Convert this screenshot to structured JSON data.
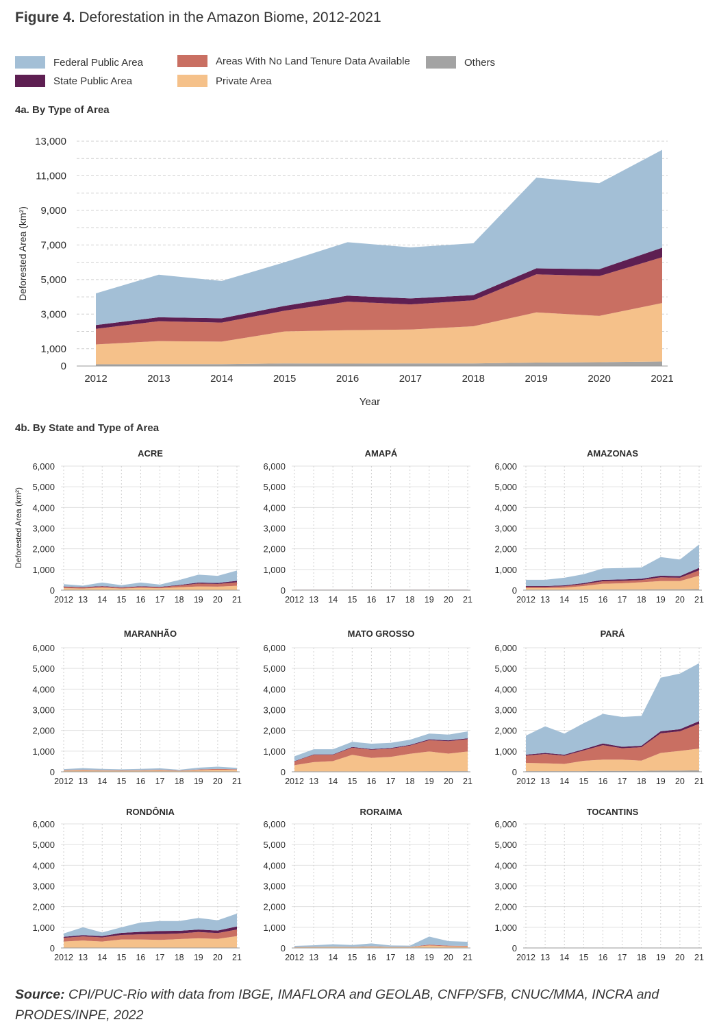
{
  "figure": {
    "label": "Figure 4.",
    "title": "Deforestation in the Amazon Biome, 2012-2021"
  },
  "legend": [
    {
      "key": "federal",
      "label": "Federal Public Area",
      "color": "#a3bfd6"
    },
    {
      "key": "state",
      "label": "State Public Area",
      "color": "#5e1f52"
    },
    {
      "key": "notenure",
      "label": "Areas With No Land Tenure Data Available",
      "color": "#c96f62"
    },
    {
      "key": "private",
      "label": "Private Area",
      "color": "#f5c18a"
    },
    {
      "key": "others",
      "label": "Others",
      "color": "#a3a3a3"
    }
  ],
  "section_a": "4a. By Type of Area",
  "section_b": "4b. By State and Type of Area",
  "source": {
    "label": "Source:",
    "text": "CPI/PUC-Rio with data from IBGE, IMAFLORA and GEOLAB, CNFP/SFB, CNUC/MMA, INCRA and PRODES/INPE, 2022"
  },
  "chart_data": [
    {
      "type": "area",
      "stacked": true,
      "xlabel": "Year",
      "ylabel": "Deforested Area (km²)",
      "x": [
        "2012",
        "2013",
        "2014",
        "2015",
        "2016",
        "2017",
        "2018",
        "2019",
        "2020",
        "2021"
      ],
      "ylim": [
        0,
        13000
      ],
      "yticks": [
        "0",
        "1,000",
        "3,000",
        "5,000",
        "7,000",
        "9,000",
        "11,000",
        "13,000"
      ],
      "series": [
        {
          "name": "Others",
          "key": "others",
          "values": [
            100,
            110,
            110,
            150,
            140,
            150,
            150,
            200,
            220,
            260
          ]
        },
        {
          "name": "Private Area",
          "key": "private",
          "values": [
            1150,
            1330,
            1300,
            1850,
            1930,
            1960,
            2150,
            2900,
            2680,
            3380
          ]
        },
        {
          "name": "Areas With No Land Tenure Data Available",
          "key": "notenure",
          "values": [
            900,
            1150,
            1100,
            1200,
            1650,
            1450,
            1500,
            2200,
            2300,
            2650
          ]
        },
        {
          "name": "State Public Area",
          "key": "state",
          "values": [
            220,
            230,
            250,
            280,
            350,
            350,
            300,
            350,
            400,
            550
          ]
        },
        {
          "name": "Federal Public Area",
          "key": "federal",
          "values": [
            1830,
            2460,
            2160,
            2520,
            3090,
            2950,
            3000,
            5240,
            4970,
            5660
          ]
        }
      ]
    },
    {
      "type": "area",
      "stacked": true,
      "title": "ACRE",
      "ylabel": "Deforested Area (km²)",
      "ylim": [
        0,
        6000
      ],
      "x": [
        "2012",
        "13",
        "14",
        "15",
        "16",
        "17",
        "18",
        "19",
        "20",
        "21"
      ],
      "series": [
        {
          "name": "Others",
          "key": "others",
          "values": [
            0,
            0,
            0,
            0,
            0,
            0,
            0,
            0,
            0,
            0
          ]
        },
        {
          "name": "Private Area",
          "key": "private",
          "values": [
            100,
            80,
            120,
            80,
            110,
            90,
            140,
            180,
            170,
            210
          ]
        },
        {
          "name": "Areas With No Land Tenure Data Available",
          "key": "notenure",
          "values": [
            60,
            50,
            60,
            40,
            60,
            50,
            80,
            140,
            130,
            170
          ]
        },
        {
          "name": "State Public Area",
          "key": "state",
          "values": [
            20,
            20,
            20,
            20,
            20,
            20,
            30,
            50,
            50,
            70
          ]
        },
        {
          "name": "Federal Public Area",
          "key": "federal",
          "values": [
            110,
            70,
            170,
            100,
            180,
            110,
            240,
            380,
            340,
            500
          ]
        }
      ]
    },
    {
      "type": "area",
      "stacked": true,
      "title": "AMAPÁ",
      "ylim": [
        0,
        6000
      ],
      "x": [
        "2012",
        "13",
        "14",
        "15",
        "16",
        "17",
        "18",
        "19",
        "20",
        "21"
      ],
      "series": [
        {
          "name": "Others",
          "key": "others",
          "values": [
            0,
            0,
            0,
            0,
            0,
            0,
            0,
            0,
            0,
            0
          ]
        },
        {
          "name": "Private Area",
          "key": "private",
          "values": [
            10,
            10,
            10,
            10,
            10,
            10,
            10,
            10,
            10,
            10
          ]
        },
        {
          "name": "Areas With No Land Tenure Data Available",
          "key": "notenure",
          "values": [
            10,
            10,
            10,
            10,
            10,
            10,
            10,
            10,
            10,
            10
          ]
        },
        {
          "name": "State Public Area",
          "key": "state",
          "values": [
            0,
            0,
            0,
            0,
            0,
            0,
            0,
            0,
            0,
            0
          ]
        },
        {
          "name": "Federal Public Area",
          "key": "federal",
          "values": [
            5,
            5,
            5,
            5,
            5,
            5,
            5,
            5,
            5,
            5
          ]
        }
      ]
    },
    {
      "type": "area",
      "stacked": true,
      "title": "AMAZONAS",
      "ylim": [
        0,
        6000
      ],
      "x": [
        "2012",
        "13",
        "14",
        "15",
        "16",
        "17",
        "18",
        "19",
        "20",
        "21"
      ],
      "series": [
        {
          "name": "Others",
          "key": "others",
          "values": [
            20,
            20,
            20,
            20,
            30,
            30,
            30,
            40,
            40,
            50
          ]
        },
        {
          "name": "Private Area",
          "key": "private",
          "values": [
            80,
            80,
            100,
            180,
            280,
            300,
            350,
            400,
            400,
            650
          ]
        },
        {
          "name": "Areas With No Land Tenure Data Available",
          "key": "notenure",
          "values": [
            60,
            60,
            70,
            90,
            120,
            120,
            110,
            180,
            160,
            260
          ]
        },
        {
          "name": "State Public Area",
          "key": "state",
          "values": [
            40,
            40,
            40,
            50,
            70,
            70,
            60,
            80,
            80,
            120
          ]
        },
        {
          "name": "Federal Public Area",
          "key": "federal",
          "values": [
            300,
            300,
            370,
            430,
            550,
            550,
            550,
            900,
            800,
            1130
          ]
        }
      ]
    },
    {
      "type": "area",
      "stacked": true,
      "title": "MARANHÃO",
      "ylim": [
        0,
        6000
      ],
      "x": [
        "2012",
        "13",
        "14",
        "15",
        "16",
        "17",
        "18",
        "19",
        "20",
        "21"
      ],
      "series": [
        {
          "name": "Others",
          "key": "others",
          "values": [
            0,
            0,
            0,
            0,
            0,
            0,
            0,
            0,
            0,
            0
          ]
        },
        {
          "name": "Private Area",
          "key": "private",
          "values": [
            60,
            70,
            60,
            50,
            60,
            70,
            40,
            80,
            100,
            90
          ]
        },
        {
          "name": "Areas With No Land Tenure Data Available",
          "key": "notenure",
          "values": [
            20,
            30,
            20,
            20,
            20,
            30,
            20,
            30,
            40,
            30
          ]
        },
        {
          "name": "State Public Area",
          "key": "state",
          "values": [
            0,
            0,
            0,
            0,
            0,
            0,
            0,
            0,
            0,
            0
          ]
        },
        {
          "name": "Federal Public Area",
          "key": "federal",
          "values": [
            50,
            80,
            60,
            50,
            60,
            70,
            40,
            90,
            110,
            70
          ]
        }
      ]
    },
    {
      "type": "area",
      "stacked": true,
      "title": "MATO GROSSO",
      "ylim": [
        0,
        6000
      ],
      "x": [
        "2012",
        "13",
        "14",
        "15",
        "16",
        "17",
        "18",
        "19",
        "20",
        "21"
      ],
      "series": [
        {
          "name": "Others",
          "key": "others",
          "values": [
            20,
            20,
            20,
            20,
            20,
            20,
            20,
            30,
            30,
            30
          ]
        },
        {
          "name": "Private Area",
          "key": "private",
          "values": [
            300,
            450,
            500,
            800,
            650,
            700,
            850,
            950,
            850,
            950
          ]
        },
        {
          "name": "Areas With No Land Tenure Data Available",
          "key": "notenure",
          "values": [
            180,
            350,
            300,
            350,
            400,
            400,
            400,
            550,
            600,
            600
          ]
        },
        {
          "name": "State Public Area",
          "key": "state",
          "values": [
            20,
            20,
            20,
            30,
            30,
            30,
            30,
            40,
            40,
            40
          ]
        },
        {
          "name": "Federal Public Area",
          "key": "federal",
          "values": [
            230,
            250,
            250,
            250,
            260,
            250,
            250,
            280,
            280,
            330
          ]
        }
      ]
    },
    {
      "type": "area",
      "stacked": true,
      "title": "PARÁ",
      "ylim": [
        0,
        6000
      ],
      "x": [
        "2012",
        "13",
        "14",
        "15",
        "16",
        "17",
        "18",
        "19",
        "20",
        "21"
      ],
      "series": [
        {
          "name": "Others",
          "key": "others",
          "values": [
            30,
            30,
            30,
            30,
            40,
            40,
            40,
            60,
            60,
            70
          ]
        },
        {
          "name": "Private Area",
          "key": "private",
          "values": [
            400,
            380,
            350,
            500,
            550,
            550,
            500,
            850,
            950,
            1050
          ]
        },
        {
          "name": "Areas With No Land Tenure Data Available",
          "key": "notenure",
          "values": [
            350,
            450,
            400,
            500,
            700,
            550,
            650,
            950,
            950,
            1200
          ]
        },
        {
          "name": "State Public Area",
          "key": "state",
          "values": [
            50,
            50,
            50,
            60,
            80,
            70,
            70,
            100,
            100,
            130
          ]
        },
        {
          "name": "Federal Public Area",
          "key": "federal",
          "values": [
            920,
            1290,
            1020,
            1260,
            1430,
            1440,
            1440,
            2590,
            2690,
            2800
          ]
        }
      ]
    },
    {
      "type": "area",
      "stacked": true,
      "title": "RONDÔNIA",
      "ylim": [
        0,
        6000
      ],
      "x": [
        "2012",
        "13",
        "14",
        "15",
        "16",
        "17",
        "18",
        "19",
        "20",
        "21"
      ],
      "series": [
        {
          "name": "Others",
          "key": "others",
          "values": [
            10,
            10,
            10,
            10,
            10,
            10,
            10,
            10,
            10,
            10
          ]
        },
        {
          "name": "Private Area",
          "key": "private",
          "values": [
            300,
            350,
            300,
            400,
            400,
            380,
            420,
            460,
            430,
            560
          ]
        },
        {
          "name": "Areas With No Land Tenure Data Available",
          "key": "notenure",
          "values": [
            180,
            200,
            200,
            220,
            250,
            280,
            270,
            300,
            280,
            320
          ]
        },
        {
          "name": "State Public Area",
          "key": "state",
          "values": [
            50,
            60,
            60,
            100,
            120,
            150,
            130,
            120,
            120,
            150
          ]
        },
        {
          "name": "Federal Public Area",
          "key": "federal",
          "values": [
            160,
            380,
            180,
            270,
            450,
            480,
            470,
            560,
            500,
            620
          ]
        }
      ]
    },
    {
      "type": "area",
      "stacked": true,
      "title": "RORAIMA",
      "ylim": [
        0,
        6000
      ],
      "x": [
        "2012",
        "13",
        "14",
        "15",
        "16",
        "17",
        "18",
        "19",
        "20",
        "21"
      ],
      "series": [
        {
          "name": "Others",
          "key": "others",
          "values": [
            0,
            0,
            0,
            0,
            0,
            0,
            0,
            0,
            0,
            0
          ]
        },
        {
          "name": "Private Area",
          "key": "private",
          "values": [
            30,
            40,
            50,
            40,
            60,
            40,
            40,
            120,
            80,
            70
          ]
        },
        {
          "name": "Areas With No Land Tenure Data Available",
          "key": "notenure",
          "values": [
            10,
            10,
            10,
            10,
            20,
            10,
            10,
            40,
            30,
            30
          ]
        },
        {
          "name": "State Public Area",
          "key": "state",
          "values": [
            0,
            0,
            0,
            0,
            0,
            0,
            0,
            0,
            0,
            0
          ]
        },
        {
          "name": "Federal Public Area",
          "key": "federal",
          "values": [
            60,
            80,
            120,
            90,
            140,
            70,
            60,
            390,
            220,
            200
          ]
        }
      ]
    },
    {
      "type": "area",
      "stacked": true,
      "title": "TOCANTINS",
      "ylim": [
        0,
        6000
      ],
      "x": [
        "2012",
        "13",
        "14",
        "15",
        "16",
        "17",
        "18",
        "19",
        "20",
        "21"
      ],
      "series": [
        {
          "name": "Others",
          "key": "others",
          "values": [
            0,
            0,
            0,
            0,
            0,
            0,
            0,
            0,
            0,
            0
          ]
        },
        {
          "name": "Private Area",
          "key": "private",
          "values": [
            10,
            10,
            10,
            10,
            10,
            10,
            10,
            10,
            10,
            10
          ]
        },
        {
          "name": "Areas With No Land Tenure Data Available",
          "key": "notenure",
          "values": [
            0,
            0,
            0,
            0,
            0,
            0,
            0,
            0,
            0,
            0
          ]
        },
        {
          "name": "State Public Area",
          "key": "state",
          "values": [
            0,
            0,
            0,
            0,
            0,
            0,
            0,
            0,
            0,
            0
          ]
        },
        {
          "name": "Federal Public Area",
          "key": "federal",
          "values": [
            0,
            0,
            0,
            0,
            0,
            0,
            0,
            0,
            0,
            0
          ]
        }
      ]
    }
  ]
}
